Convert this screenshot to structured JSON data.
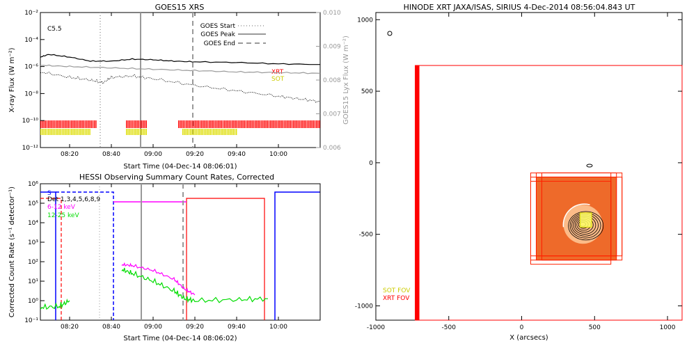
{
  "chart_data": [
    {
      "type": "line",
      "title": "GOES15 XRS",
      "xlabel": "Start Time (04-Dec-14 08:06:01)",
      "ylabel": "X-ray Flux (W m⁻²)",
      "y2label": "GOES15 Lyx Flux (W m⁻²)",
      "flare_class": "C5.5",
      "x_ticks": [
        "08:20",
        "08:40",
        "09:00",
        "09:20",
        "09:40",
        "10:00"
      ],
      "y_ticks": [
        "10⁻¹²",
        "10⁻¹⁰",
        "10⁻⁸",
        "10⁻⁶",
        "10⁻⁴",
        "10⁻²"
      ],
      "y2_ticks": [
        "0.006",
        "0.007",
        "0.008",
        "0.009",
        "0.010"
      ],
      "legend": [
        {
          "name": "GOES Start",
          "style": "dotted"
        },
        {
          "name": "GOES Peak",
          "style": "solid"
        },
        {
          "name": "GOES End",
          "style": "dashed"
        }
      ],
      "bar_labels": [
        {
          "name": "XRT",
          "color": "#ff0000"
        },
        {
          "name": "SOT",
          "color": "#dddd00"
        }
      ],
      "event_lines": {
        "start": "08:36",
        "peak": "08:57",
        "end": "09:19"
      },
      "long_channel": {
        "time": [
          "08:06",
          "08:10",
          "08:20",
          "08:30",
          "08:40",
          "08:50",
          "09:00",
          "09:10",
          "09:20",
          "09:40",
          "10:00",
          "10:20"
        ],
        "log_flux": [
          -5.3,
          -5.1,
          -5.3,
          -5.6,
          -5.6,
          -5.45,
          -5.5,
          -5.6,
          -5.65,
          -5.7,
          -5.8,
          -5.85
        ]
      },
      "lya_channel": {
        "time": [
          "08:06",
          "08:20",
          "08:40",
          "09:00",
          "09:20",
          "09:40",
          "10:00",
          "10:20"
        ],
        "log_flux": [
          -5.9,
          -6.0,
          -6.1,
          -6.2,
          -6.3,
          -6.4,
          -6.45,
          -6.5
        ]
      },
      "short_channel": {
        "time": [
          "08:06",
          "08:20",
          "08:30",
          "08:36",
          "08:40",
          "08:50",
          "09:00",
          "09:20",
          "09:40",
          "10:00",
          "10:10",
          "10:20"
        ],
        "log_flux": [
          -6.4,
          -6.8,
          -7.0,
          -7.2,
          -6.8,
          -6.7,
          -6.9,
          -7.4,
          -7.8,
          -8.2,
          -8.4,
          -8.6
        ]
      },
      "xrt_coverage": [
        [
          "08:06",
          "08:33"
        ],
        [
          "08:47",
          "08:57"
        ],
        [
          "09:12",
          "10:20"
        ]
      ],
      "sot_coverage": [
        [
          "08:06",
          "08:30"
        ],
        [
          "08:47",
          "08:57"
        ],
        [
          "09:14",
          "09:40"
        ]
      ]
    },
    {
      "type": "line",
      "title": "HESSI Observing Summary Count Rates, Corrected",
      "xlabel": "Start Time (04-Dec-14 08:06:02)",
      "ylabel": "Corrected Count Rate (s⁻¹ detector⁻¹)",
      "detectors_label": "Det 1,3,4,5,6,8,9",
      "x_ticks": [
        "08:20",
        "08:40",
        "09:00",
        "09:20",
        "09:40",
        "10:00"
      ],
      "y_ticks": [
        "10⁻¹",
        "10⁰",
        "10¹",
        "10²",
        "10³",
        "10⁴",
        "10⁵",
        "10⁶"
      ],
      "legend_s": "S",
      "series": [
        {
          "name": "6-12 keV",
          "color": "#ff00ff",
          "time": [
            "08:45",
            "08:50",
            "09:00",
            "09:10",
            "09:15",
            "09:20"
          ],
          "log_rate": [
            1.85,
            1.8,
            1.55,
            1.1,
            0.6,
            0.3
          ]
        },
        {
          "name": "12-25 keV",
          "color": "#00dd00",
          "time": [
            "08:06",
            "08:15",
            "08:20",
            "08:45",
            "08:50",
            "09:00",
            "09:10",
            "09:15",
            "09:20",
            "09:40",
            "09:55"
          ],
          "log_rate": [
            -0.35,
            -0.3,
            0.0,
            1.6,
            1.4,
            1.0,
            0.5,
            0.1,
            0.0,
            0.05,
            0.1
          ]
        }
      ],
      "pink_flat_level": 5.0,
      "red_flat_level": 5.3,
      "blue_flat_level": 5.5
    },
    {
      "type": "scatter",
      "title": "HINODE XRT JAXA/ISAS, SIRIUS   4-Dec-2014 08:56:04.843 UT",
      "xlabel": "X (arcsecs)",
      "ylabel": "Y (arcsecs)",
      "x_ticks": [
        "-1000",
        "-500",
        "0",
        "500",
        "1000"
      ],
      "y_ticks": [
        "-1000",
        "-500",
        "0",
        "500",
        "1000"
      ],
      "xlim": [
        -1000,
        1100
      ],
      "ylim": [
        -1100,
        1050
      ],
      "fov_labels": [
        {
          "name": "SOT FOV",
          "color": "#dddd00"
        },
        {
          "name": "XRT FOV",
          "color": "#ff0000"
        }
      ],
      "xrt_large_fov": {
        "x0": -730,
        "x1": 1100,
        "y0": -1100,
        "y1": 680
      },
      "xrt_small_fov": {
        "x0": 100,
        "x1": 650,
        "y0": -680,
        "y1": -100
      },
      "sot_fov": {
        "x0": 400,
        "x1": 480,
        "y0": -450,
        "y1": -350
      },
      "active_region": {
        "x": 420,
        "y": -430
      }
    }
  ]
}
